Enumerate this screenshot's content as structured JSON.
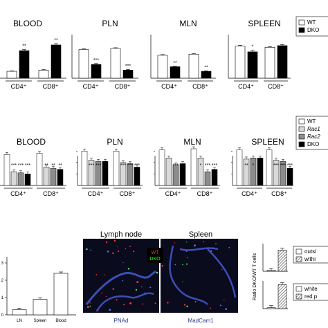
{
  "colors": {
    "wt": "#ffffff",
    "rac1": "#d9d9d9",
    "rac2": "#8c8c8c",
    "dko": "#000000",
    "micro_bg": "#0b0b1e",
    "micro_vessel": "#3b4fb8",
    "micro_label": "#2a3c8c"
  },
  "chart_data": [
    {
      "id": "row1",
      "type": "bar",
      "panels": [
        {
          "title": "BLOOD",
          "categories": [
            "CD4⁺",
            "CD8⁺"
          ],
          "series": [
            {
              "name": "WT",
              "values": [
                0.3,
                0.35
              ]
            },
            {
              "name": "DKO",
              "values": [
                1.2,
                1.45
              ]
            }
          ],
          "errors": [
            [
              0.02,
              0.03
            ],
            [
              0.05,
              0.06
            ]
          ],
          "significance": [
            "**",
            "**"
          ],
          "ylim": [
            0,
            1.6
          ]
        },
        {
          "title": "PLN",
          "categories": [
            "CD4⁺",
            "CD8⁺"
          ],
          "series": [
            {
              "name": "WT",
              "values": [
                1.25,
                1.3
              ]
            },
            {
              "name": "DKO",
              "values": [
                0.6,
                0.35
              ]
            }
          ],
          "errors": [
            [
              0.03,
              0.03
            ],
            [
              0.04,
              0.03
            ]
          ],
          "significance": [
            "***",
            "***"
          ],
          "ylim": [
            0,
            1.6
          ]
        },
        {
          "title": "MLN",
          "categories": [
            "CD4⁺",
            "CD8⁺"
          ],
          "series": [
            {
              "name": "WT",
              "values": [
                1.0,
                1.05
              ]
            },
            {
              "name": "DKO",
              "values": [
                0.5,
                0.3
              ]
            }
          ],
          "errors": [
            [
              0.03,
              0.03
            ],
            [
              0.02,
              0.02
            ]
          ],
          "significance": [
            "**",
            "**"
          ],
          "ylim": [
            0,
            1.6
          ]
        },
        {
          "title": "SPLEEN",
          "categories": [
            "CD4⁺",
            "CD8⁺"
          ],
          "series": [
            {
              "name": "WT",
              "values": [
                1.4,
                1.35
              ]
            },
            {
              "name": "DKO",
              "values": [
                1.15,
                1.42
              ]
            }
          ],
          "errors": [
            [
              0.04,
              0.03
            ],
            [
              0.08,
              0.05
            ]
          ],
          "significance": [
            "*",
            ""
          ],
          "ylim": [
            0,
            1.6
          ]
        }
      ],
      "legend": [
        "WT",
        "DKO"
      ]
    },
    {
      "id": "row2",
      "type": "bar",
      "panels": [
        {
          "title": "BLOOD",
          "categories": [
            "CD4⁺",
            "CD8⁺"
          ],
          "series": [
            {
              "name": "WT",
              "values": [
                1.35,
                1.4
              ]
            },
            {
              "name": "Rac1",
              "values": [
                0.6,
                0.8
              ]
            },
            {
              "name": "Rac2",
              "values": [
                0.55,
                0.75
              ]
            },
            {
              "name": "DKO",
              "values": [
                0.5,
                0.7
              ]
            }
          ],
          "significance": [
            [
              "",
              "***",
              "***",
              "***"
            ],
            [
              "",
              "**",
              "**",
              "**"
            ]
          ],
          "ylim": [
            0,
            1.6
          ]
        },
        {
          "title": "PLN",
          "categories": [
            "CD4⁺",
            "CD8⁺"
          ],
          "series": [
            {
              "name": "WT",
              "values": [
                1.5,
                1.5
              ]
            },
            {
              "name": "Rac1",
              "values": [
                1.1,
                1.0
              ]
            },
            {
              "name": "Rac2",
              "values": [
                1.05,
                0.95
              ]
            },
            {
              "name": "DKO",
              "values": [
                1.05,
                0.8
              ]
            }
          ],
          "significance": [
            [
              "",
              "***",
              "***",
              "***"
            ],
            [
              "",
              "***",
              "***",
              "***"
            ]
          ],
          "ylim": [
            0,
            1.6
          ]
        },
        {
          "title": "MLN",
          "categories": [
            "CD4⁺",
            "CD8⁺"
          ],
          "series": [
            {
              "name": "WT",
              "values": [
                1.55,
                1.6
              ]
            },
            {
              "name": "Rac1",
              "values": [
                1.2,
                1.2
              ]
            },
            {
              "name": "Rac2",
              "values": [
                0.9,
                0.6
              ]
            },
            {
              "name": "DKO",
              "values": [
                0.95,
                0.7
              ]
            }
          ],
          "significance": [
            [
              "",
              "",
              "***",
              "***"
            ],
            [
              "",
              "*",
              "***",
              "***"
            ]
          ],
          "ylim": [
            0,
            1.6
          ]
        },
        {
          "title": "SPLEEN",
          "categories": [
            "CD4⁺",
            "CD8⁺"
          ],
          "series": [
            {
              "name": "WT",
              "values": [
                1.55,
                1.55
              ]
            },
            {
              "name": "Rac1",
              "values": [
                1.15,
                1.1
              ]
            },
            {
              "name": "Rac2",
              "values": [
                1.2,
                1.05
              ]
            },
            {
              "name": "DKO",
              "values": [
                1.2,
                0.75
              ]
            }
          ],
          "significance": [
            [
              "",
              "**",
              "*",
              "**"
            ],
            [
              "",
              "***",
              "***",
              "***"
            ]
          ],
          "ylim": [
            0,
            1.6
          ]
        }
      ],
      "legend": [
        "WT",
        "Rac1",
        "Rac2",
        "DKO"
      ]
    },
    {
      "id": "row3-left",
      "type": "bar",
      "categories": [
        "LN",
        "Spleen",
        "Blood"
      ],
      "values": [
        0.3,
        0.9,
        2.4
      ],
      "yticks": [
        0,
        1,
        2,
        3
      ],
      "ylim": [
        0,
        3.2
      ]
    },
    {
      "id": "row3-right",
      "type": "bar",
      "ylabel": "Ratio DKO/WT T cells",
      "panels": [
        {
          "legend": [
            "outsi",
            "withi"
          ],
          "values": [
            0.1,
            2.3
          ],
          "ylim": [
            0,
            3
          ]
        },
        {
          "legend": [
            "white",
            "red p"
          ],
          "values": [
            0.1,
            2.6
          ],
          "ylim": [
            0,
            3
          ]
        }
      ]
    }
  ],
  "micro": {
    "title_left": "Lymph node",
    "title_right": "Spleen",
    "badge_wt": "WT",
    "badge_dko": "DKO",
    "stain_left": "PNAd",
    "stain_right": "MadCam1"
  }
}
